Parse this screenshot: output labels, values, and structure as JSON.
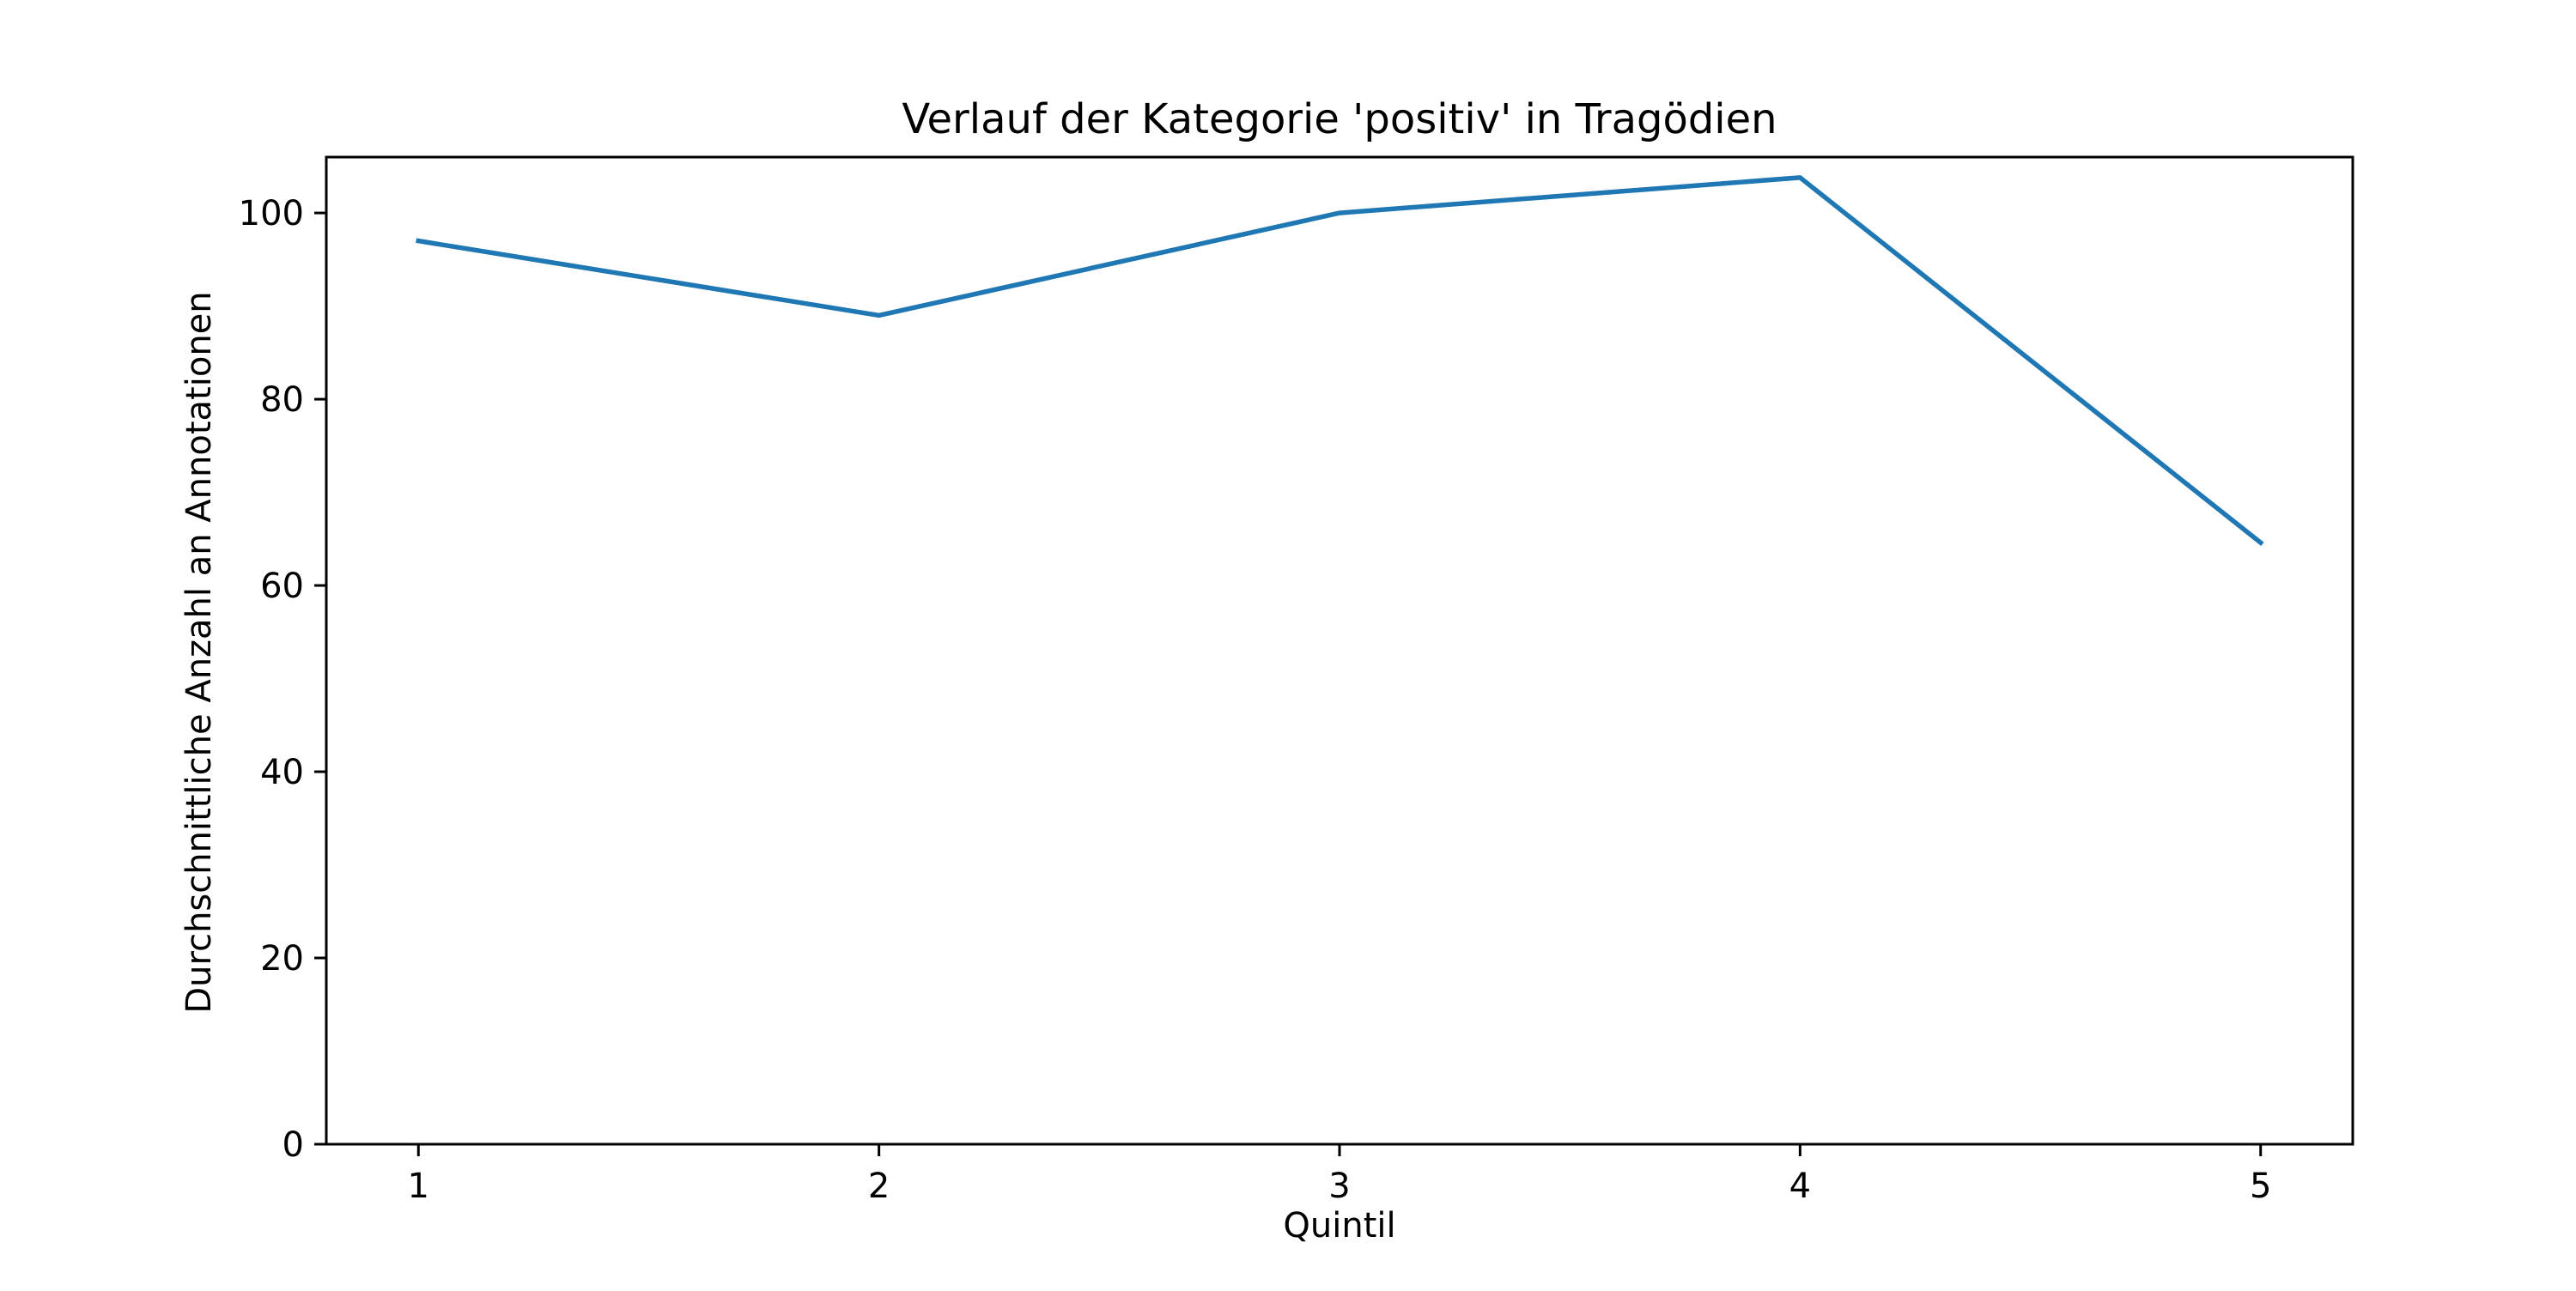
{
  "chart_data": {
    "type": "line",
    "title": "Verlauf der Kategorie 'positiv' in Tragödien",
    "xlabel": "Quintil",
    "ylabel": "Durchschnittliche Anzahl an Annotationen",
    "x": [
      1,
      2,
      3,
      4,
      5
    ],
    "series": [
      {
        "values": [
          97.0,
          89.0,
          100.0,
          103.8,
          64.6
        ]
      }
    ],
    "xlim": [
      0.8,
      5.2
    ],
    "ylim": [
      0,
      106
    ],
    "xticks": [
      1,
      2,
      3,
      4,
      5
    ],
    "yticks": [
      0,
      20,
      40,
      60,
      80,
      100
    ],
    "grid": false,
    "line_color": "#1f77b4"
  }
}
